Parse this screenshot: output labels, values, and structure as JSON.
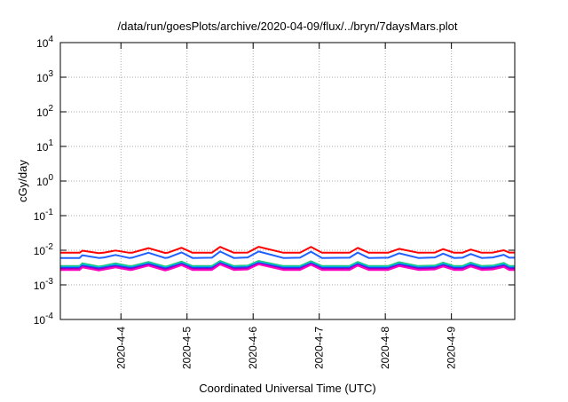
{
  "chart_data": {
    "type": "line",
    "title": "/data/run/goesPlots/archive/2020-04-09/flux/../bryn/7daysMars.plot",
    "xlabel": "Coordinated Universal Time (UTC)",
    "ylabel": "cGy/day",
    "y_scale": "log",
    "ylim": [
      0.0001,
      10000
    ],
    "xlim": [
      "2020-04-03 02:00",
      "2020-04-09 23:00"
    ],
    "grid": true,
    "y_ticks": [
      {
        "value": 0.0001,
        "base": "10",
        "exp": "-4"
      },
      {
        "value": 0.001,
        "base": "10",
        "exp": "-3"
      },
      {
        "value": 0.01,
        "base": "10",
        "exp": "-2"
      },
      {
        "value": 0.1,
        "base": "10",
        "exp": "-1"
      },
      {
        "value": 1,
        "base": "10",
        "exp": "0"
      },
      {
        "value": 10,
        "base": "10",
        "exp": "1"
      },
      {
        "value": 100,
        "base": "10",
        "exp": "2"
      },
      {
        "value": 1000,
        "base": "10",
        "exp": "3"
      },
      {
        "value": 10000,
        "base": "10",
        "exp": "4"
      }
    ],
    "x_ticks": [
      {
        "value": "2020-04-04 00:00",
        "label": "2020-4-4"
      },
      {
        "value": "2020-04-05 00:00",
        "label": "2020-4-5"
      },
      {
        "value": "2020-04-06 00:00",
        "label": "2020-4-6"
      },
      {
        "value": "2020-04-07 00:00",
        "label": "2020-4-7"
      },
      {
        "value": "2020-04-08 00:00",
        "label": "2020-4-8"
      },
      {
        "value": "2020-04-09 00:00",
        "label": "2020-4-9"
      }
    ],
    "x": [
      "2020-04-03 02:00",
      "2020-04-03 09:00",
      "2020-04-03 10:00",
      "2020-04-03 16:00",
      "2020-04-03 18:00",
      "2020-04-03 22:00",
      "2020-04-04 03:00",
      "2020-04-04 04:00",
      "2020-04-04 10:00",
      "2020-04-04 16:00",
      "2020-04-04 17:00",
      "2020-04-04 22:00",
      "2020-04-05 02:00",
      "2020-04-05 09:00",
      "2020-04-05 12:00",
      "2020-04-05 17:00",
      "2020-04-05 22:00",
      "2020-04-06 02:00",
      "2020-04-06 11:00",
      "2020-04-06 17:00",
      "2020-04-06 21:00",
      "2020-04-07 01:00",
      "2020-04-07 11:00",
      "2020-04-07 14:00",
      "2020-04-07 18:00",
      "2020-04-08 01:00",
      "2020-04-08 05:00",
      "2020-04-08 12:00",
      "2020-04-08 18:00",
      "2020-04-08 21:00",
      "2020-04-09 01:00",
      "2020-04-09 04:00",
      "2020-04-09 07:00",
      "2020-04-09 11:00",
      "2020-04-09 15:00",
      "2020-04-09 19:00",
      "2020-04-09 21:00",
      "2020-04-09 23:00"
    ],
    "series": [
      {
        "color": "#ff0000",
        "values": [
          0.0085,
          0.0085,
          0.0097,
          0.0083,
          0.0086,
          0.0098,
          0.0085,
          0.0085,
          0.0115,
          0.0084,
          0.0085,
          0.0118,
          0.0085,
          0.0085,
          0.0125,
          0.0085,
          0.0086,
          0.0126,
          0.0085,
          0.0085,
          0.0125,
          0.0085,
          0.0085,
          0.0117,
          0.0085,
          0.0085,
          0.011,
          0.0085,
          0.0086,
          0.0108,
          0.0085,
          0.0085,
          0.0105,
          0.0085,
          0.0086,
          0.01,
          0.0086,
          0.0086
        ]
      },
      {
        "color": "#2060ff",
        "values": [
          0.006,
          0.006,
          0.0072,
          0.006,
          0.0062,
          0.0073,
          0.006,
          0.0061,
          0.0085,
          0.006,
          0.0061,
          0.0087,
          0.006,
          0.0061,
          0.0092,
          0.006,
          0.0062,
          0.0092,
          0.006,
          0.0061,
          0.0091,
          0.006,
          0.0061,
          0.0086,
          0.006,
          0.0061,
          0.0082,
          0.006,
          0.0062,
          0.008,
          0.006,
          0.0061,
          0.0078,
          0.006,
          0.0062,
          0.0074,
          0.0061,
          0.0061
        ]
      },
      {
        "color": "#20c070",
        "values": [
          0.0035,
          0.0035,
          0.0042,
          0.0034,
          0.0036,
          0.0042,
          0.0035,
          0.0035,
          0.0046,
          0.0034,
          0.0035,
          0.0047,
          0.0035,
          0.0035,
          0.0049,
          0.0035,
          0.0036,
          0.0049,
          0.0035,
          0.0035,
          0.0048,
          0.0035,
          0.0035,
          0.0046,
          0.0035,
          0.0035,
          0.0045,
          0.0035,
          0.0036,
          0.0044,
          0.0035,
          0.0035,
          0.0044,
          0.0035,
          0.0036,
          0.0043,
          0.0035,
          0.0035
        ]
      },
      {
        "color": "#00d0d0",
        "values": [
          0.0033,
          0.0033,
          0.0039,
          0.0032,
          0.0034,
          0.0039,
          0.0033,
          0.0033,
          0.0043,
          0.0032,
          0.0033,
          0.0044,
          0.0033,
          0.0033,
          0.0046,
          0.0033,
          0.0034,
          0.0046,
          0.0033,
          0.0033,
          0.0045,
          0.0033,
          0.0033,
          0.0043,
          0.0033,
          0.0033,
          0.0042,
          0.0033,
          0.0034,
          0.0041,
          0.0033,
          0.0033,
          0.0041,
          0.0033,
          0.0034,
          0.004,
          0.0033,
          0.0033
        ]
      },
      {
        "color": "#2040ff",
        "values": [
          0.0031,
          0.0031,
          0.0036,
          0.003,
          0.0032,
          0.0036,
          0.0031,
          0.0031,
          0.004,
          0.003,
          0.0031,
          0.0041,
          0.0031,
          0.0031,
          0.0043,
          0.0031,
          0.0032,
          0.0043,
          0.0031,
          0.0031,
          0.0042,
          0.0031,
          0.0031,
          0.004,
          0.0031,
          0.0031,
          0.0039,
          0.0031,
          0.0032,
          0.0038,
          0.0031,
          0.0031,
          0.0038,
          0.0031,
          0.0032,
          0.0037,
          0.0031,
          0.0031
        ]
      },
      {
        "color": "#9000c0",
        "values": [
          0.0029,
          0.0029,
          0.0034,
          0.0028,
          0.003,
          0.0034,
          0.0029,
          0.0029,
          0.0038,
          0.0028,
          0.0029,
          0.0039,
          0.0029,
          0.0029,
          0.0041,
          0.0029,
          0.003,
          0.0041,
          0.0029,
          0.0029,
          0.004,
          0.0029,
          0.0029,
          0.0038,
          0.0029,
          0.0029,
          0.0037,
          0.0029,
          0.003,
          0.0036,
          0.0029,
          0.0029,
          0.0036,
          0.0029,
          0.003,
          0.0035,
          0.0029,
          0.0029
        ]
      },
      {
        "color": "#ff00c0",
        "values": [
          0.0027,
          0.0027,
          0.0032,
          0.0026,
          0.0028,
          0.0032,
          0.0027,
          0.0027,
          0.0036,
          0.0026,
          0.0027,
          0.0037,
          0.0027,
          0.0027,
          0.0039,
          0.0027,
          0.0028,
          0.0039,
          0.0027,
          0.0027,
          0.0038,
          0.0027,
          0.0027,
          0.0036,
          0.0027,
          0.0027,
          0.0035,
          0.0027,
          0.0028,
          0.0034,
          0.0027,
          0.0027,
          0.0034,
          0.0027,
          0.0028,
          0.0033,
          0.0027,
          0.0027
        ]
      }
    ]
  }
}
